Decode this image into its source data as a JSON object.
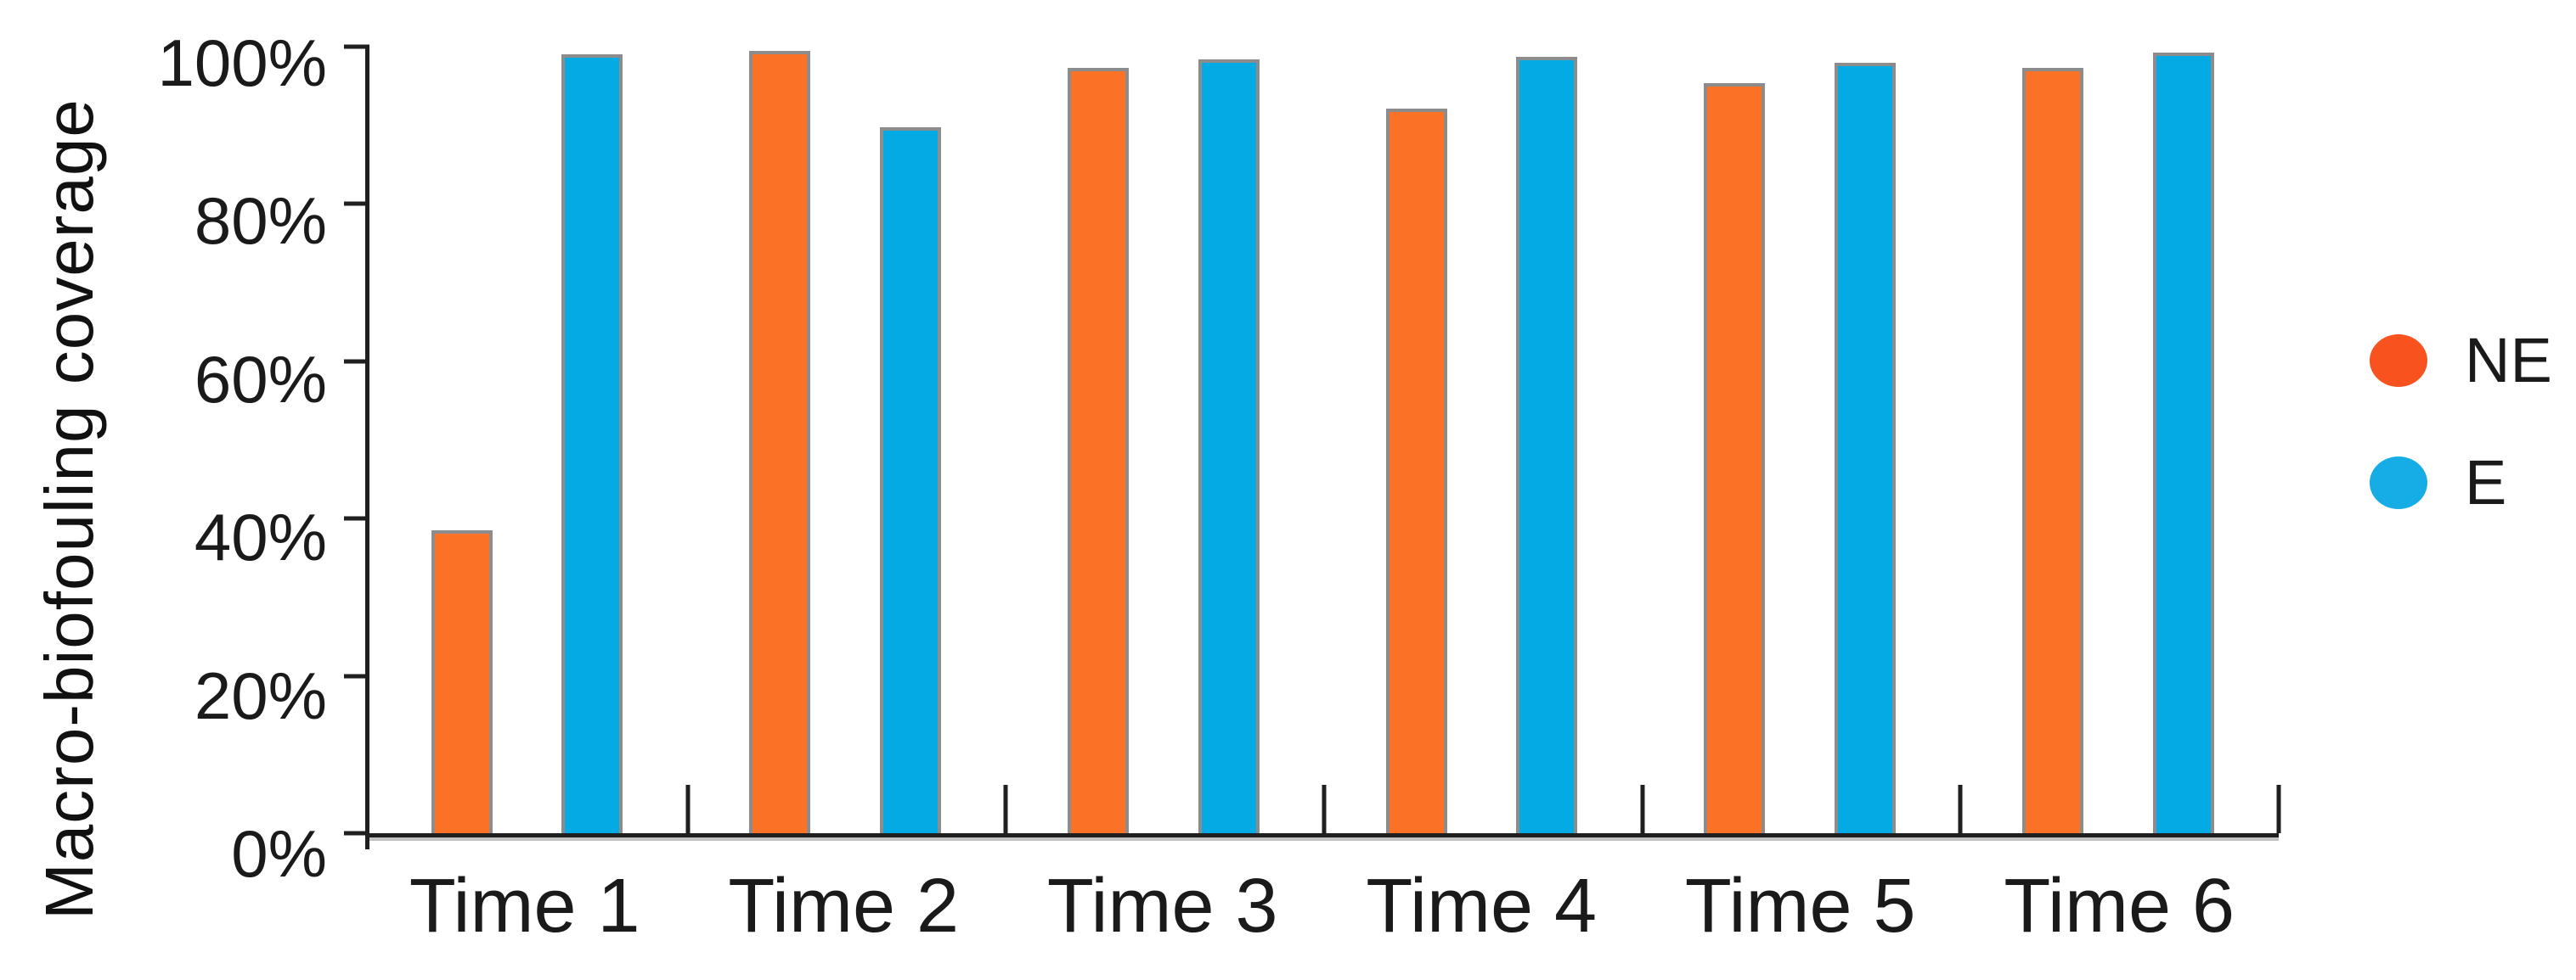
{
  "page": {
    "background": "#FFFFFF"
  },
  "chart_data": {
    "type": "bar",
    "title": "",
    "xlabel": "",
    "ylabel": "Macro-biofouling coverage",
    "categories": [
      "Time 1",
      "Time 2",
      "Time 3",
      "Time 4",
      "Time 5",
      "Time 6"
    ],
    "series": [
      {
        "name": "NE",
        "color": "#FB7226",
        "legend_color": "#F8521E",
        "values": [
          38.5,
          99.5,
          97.3,
          92.1,
          95.4,
          97.3
        ]
      },
      {
        "name": "E",
        "color": "#04AAE4",
        "legend_color": "#16ACE5",
        "values": [
          99.0,
          89.7,
          98.4,
          98.7,
          97.9,
          99.2
        ]
      }
    ],
    "y_ticks": [
      "0%",
      "20%",
      "40%",
      "60%",
      "80%",
      "100%"
    ],
    "ylim": [
      0,
      100
    ],
    "grid": false,
    "legend_position": "right",
    "bar_outline_color": "#8C8C8C",
    "axis_color": "#1F1F1F",
    "text_color": "#1A1A1A"
  }
}
